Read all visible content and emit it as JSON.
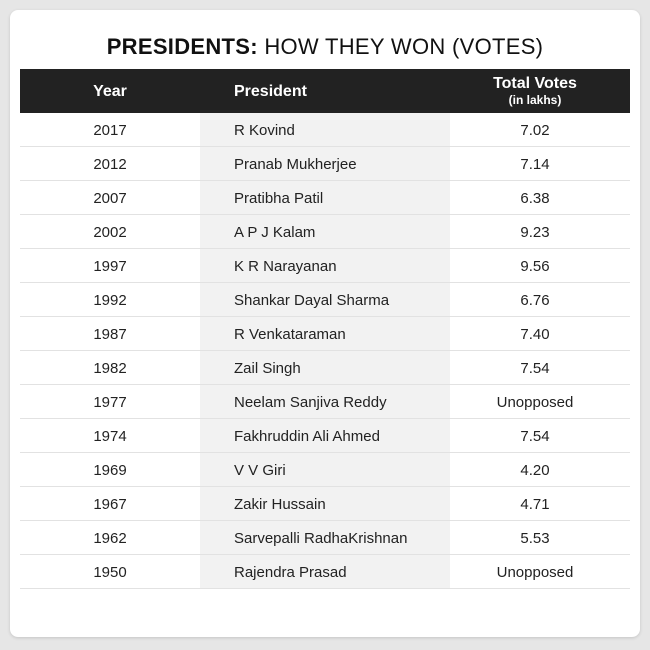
{
  "header": {
    "title_bold": "PRESIDENTS:",
    "title_rest": "HOW THEY WON (VOTES)"
  },
  "table": {
    "columns": [
      "Year",
      "President",
      "Total Votes",
      "(in lakhs)"
    ],
    "rows": [
      [
        "2017",
        "R Kovind",
        "7.02"
      ],
      [
        "2012",
        "Pranab Mukherjee",
        "7.14"
      ],
      [
        "2007",
        "Pratibha Patil",
        "6.38"
      ],
      [
        "2002",
        "A P J Kalam",
        "9.23"
      ],
      [
        "1997",
        "K R Narayanan",
        "9.56"
      ],
      [
        "1992",
        "Shankar Dayal Sharma",
        "6.76"
      ],
      [
        "1987",
        "R Venkataraman",
        "7.40"
      ],
      [
        "1982",
        "Zail Singh",
        "7.54"
      ],
      [
        "1977",
        "Neelam Sanjiva Reddy",
        "Unopposed"
      ],
      [
        "1974",
        "Fakhruddin Ali Ahmed",
        "7.54"
      ],
      [
        "1969",
        "V V Giri",
        "4.20"
      ],
      [
        "1967",
        "Zakir Hussain",
        "4.71"
      ],
      [
        "1962",
        "Sarvepalli RadhaKrishnan",
        "5.53"
      ],
      [
        "1950",
        "Rajendra Prasad",
        "Unopposed"
      ]
    ]
  }
}
